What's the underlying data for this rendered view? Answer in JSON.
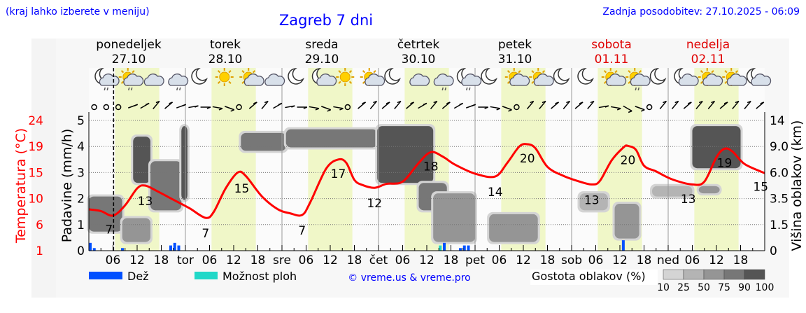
{
  "header": {
    "hint": "(kraj lahko izberete v meniju)",
    "title": "Zagreb 7 dni",
    "updated": "Zadnja posodobitev: 27.10.2025 - 06:09"
  },
  "colors": {
    "title": "#0000ff",
    "weekend": "#e00000",
    "temperature": "#ff0000",
    "rain": "#0050ff",
    "shower": "#20d8c8",
    "daylight": "#f0f7c8",
    "density": [
      "#d4d4d4",
      "#b4b4b4",
      "#959595",
      "#777777",
      "#555555"
    ]
  },
  "days": [
    {
      "name": "ponedeljek",
      "date": "27.10",
      "weekend": false
    },
    {
      "name": "torek",
      "date": "28.10",
      "weekend": false
    },
    {
      "name": "sreda",
      "date": "29.10",
      "weekend": false
    },
    {
      "name": "četrtek",
      "date": "30.10",
      "weekend": false
    },
    {
      "name": "petek",
      "date": "31.10",
      "weekend": false
    },
    {
      "name": "sobota",
      "date": "01.11",
      "weekend": true
    },
    {
      "name": "nedelja",
      "date": "02.11",
      "weekend": true
    }
  ],
  "icons": [
    "moon-cloud-rain",
    "sun-cloud-rain",
    "cloud",
    "cloud-rain",
    "moon",
    "sun",
    "sun-cloud",
    "cloud",
    "moon",
    "moon-cloud",
    "sun",
    "sun-cloud",
    "moon",
    "cloud",
    "cloud-rain",
    "moon-cloud-rain",
    "moon",
    "sun-cloud",
    "sun-cloud",
    "moon",
    "moon",
    "sun-cloud",
    "sun-cloud-rain",
    "moon",
    "moon-cloud",
    "sun-cloud",
    "sun-cloud",
    "moon-cloud"
  ],
  "wind": [
    "calm",
    "calm",
    "calm",
    250,
    240,
    220,
    230,
    250,
    260,
    270,
    280,
    290,
    "calm",
    230,
    220,
    240,
    260,
    270,
    280,
    290,
    280,
    "calm",
    230,
    220,
    230,
    220,
    230,
    240,
    220,
    230,
    240,
    250,
    270,
    280,
    290,
    "calm",
    220,
    220,
    230,
    220,
    230,
    220,
    260,
    280,
    300,
    290,
    "calm",
    220,
    220,
    230,
    220,
    220,
    230,
    220,
    220,
    230
  ],
  "chart_data": {
    "type": "line",
    "x_unit": "hour from 27.10 00:00",
    "xlim": [
      0,
      168
    ],
    "now_hour": 6.15,
    "x_tick_labels": [
      {
        "h": 6,
        "label": "06"
      },
      {
        "h": 12,
        "label": "12"
      },
      {
        "h": 18,
        "label": "18"
      },
      {
        "h": 24,
        "label": "tor"
      },
      {
        "h": 30,
        "label": "06"
      },
      {
        "h": 36,
        "label": "12"
      },
      {
        "h": 42,
        "label": "18"
      },
      {
        "h": 48,
        "label": "sre"
      },
      {
        "h": 54,
        "label": "06"
      },
      {
        "h": 60,
        "label": "12"
      },
      {
        "h": 66,
        "label": "18"
      },
      {
        "h": 72,
        "label": "čet"
      },
      {
        "h": 78,
        "label": "06"
      },
      {
        "h": 84,
        "label": "12"
      },
      {
        "h": 90,
        "label": "18"
      },
      {
        "h": 96,
        "label": "pet"
      },
      {
        "h": 102,
        "label": "06"
      },
      {
        "h": 108,
        "label": "12"
      },
      {
        "h": 114,
        "label": "18"
      },
      {
        "h": 120,
        "label": "sob"
      },
      {
        "h": 126,
        "label": "06"
      },
      {
        "h": 132,
        "label": "12"
      },
      {
        "h": 138,
        "label": "18"
      },
      {
        "h": 144,
        "label": "ned"
      },
      {
        "h": 150,
        "label": "06"
      },
      {
        "h": 156,
        "label": "12"
      },
      {
        "h": 162,
        "label": "18"
      }
    ],
    "daylight": [
      [
        6.5,
        17.5
      ],
      [
        30.5,
        41.5
      ],
      [
        54.5,
        65.5
      ],
      [
        78.5,
        89.5
      ],
      [
        102.5,
        113.5
      ],
      [
        126.5,
        137.5
      ],
      [
        150.5,
        161.5
      ]
    ],
    "y_left_precip": {
      "label": "Padavine (mm/h)",
      "ticks": [
        "0",
        "1",
        "2",
        "3",
        "4",
        "5"
      ],
      "ylim": [
        0,
        5
      ]
    },
    "y_left_temp": {
      "label": "Temperatura (°C)",
      "ticks": [
        "1",
        "6",
        "10",
        "15",
        "19",
        "24"
      ],
      "ylim": [
        1,
        24
      ]
    },
    "y_right_cloud": {
      "label": "Višina oblakov (km)",
      "ticks": [
        "0",
        "1.5",
        "3.5",
        "6.0",
        "9.0",
        "14"
      ]
    },
    "temperature": [
      [
        0,
        8.3
      ],
      [
        3,
        8.0
      ],
      [
        6,
        7.2
      ],
      [
        9,
        9
      ],
      [
        12,
        12
      ],
      [
        14,
        12.5
      ],
      [
        17,
        11.5
      ],
      [
        21,
        10
      ],
      [
        25,
        8.5
      ],
      [
        29,
        6.8
      ],
      [
        31,
        7.8
      ],
      [
        34,
        12
      ],
      [
        37,
        14.8
      ],
      [
        39,
        14.2
      ],
      [
        43,
        10.6
      ],
      [
        47,
        8.3
      ],
      [
        50,
        7.6
      ],
      [
        53,
        7.3
      ],
      [
        55,
        9.5
      ],
      [
        59,
        15.5
      ],
      [
        62,
        17.1
      ],
      [
        64,
        16.5
      ],
      [
        66,
        13.5
      ],
      [
        68,
        12.6
      ],
      [
        71,
        12.1
      ],
      [
        74,
        12.8
      ],
      [
        78,
        13.2
      ],
      [
        82,
        16.5
      ],
      [
        85,
        18.4
      ],
      [
        88,
        17.6
      ],
      [
        91,
        16.2
      ],
      [
        96,
        14.6
      ],
      [
        101,
        14.1
      ],
      [
        104,
        16.5
      ],
      [
        107,
        19.4
      ],
      [
        109,
        19.8
      ],
      [
        111,
        19.1
      ],
      [
        114,
        15.8
      ],
      [
        118,
        14.2
      ],
      [
        122,
        13.2
      ],
      [
        125,
        12.7
      ],
      [
        127,
        13.3
      ],
      [
        130,
        17
      ],
      [
        133,
        19.3
      ],
      [
        134,
        19.5
      ],
      [
        136,
        18.8
      ],
      [
        138,
        16
      ],
      [
        141,
        15
      ],
      [
        145,
        13.6
      ],
      [
        150,
        12.7
      ],
      [
        153,
        13.2
      ],
      [
        156,
        17.5
      ],
      [
        158,
        19
      ],
      [
        160,
        18.5
      ],
      [
        163,
        16.3
      ],
      [
        168,
        14.7
      ]
    ],
    "temperature_labels": [
      {
        "h": 5,
        "value": "7"
      },
      {
        "h": 14,
        "value": "13"
      },
      {
        "h": 29,
        "value": "7"
      },
      {
        "h": 38,
        "value": "15"
      },
      {
        "h": 53,
        "value": "7"
      },
      {
        "h": 62,
        "value": "17"
      },
      {
        "h": 71,
        "value": "12"
      },
      {
        "h": 85,
        "value": "18"
      },
      {
        "h": 101,
        "value": "14"
      },
      {
        "h": 109,
        "value": "20"
      },
      {
        "h": 125,
        "value": "13"
      },
      {
        "h": 134,
        "value": "20"
      },
      {
        "h": 149,
        "value": "13"
      },
      {
        "h": 158,
        "value": "19"
      },
      {
        "h": 167,
        "value": "15"
      }
    ],
    "rain": [
      [
        0,
        0.3
      ],
      [
        1,
        0.1
      ],
      [
        8,
        0.1
      ],
      [
        20,
        0.2
      ],
      [
        21,
        0.3
      ],
      [
        22,
        0.2
      ],
      [
        88,
        0.3
      ],
      [
        92,
        0.1
      ],
      [
        93,
        0.2
      ],
      [
        94,
        0.2
      ],
      [
        132.5,
        0.4
      ]
    ],
    "shower": [
      [
        87,
        0.2
      ]
    ],
    "cloud_blobs": [
      {
        "h": [
          0,
          8.3
        ],
        "km": [
          1.1,
          3.7
        ],
        "density": 75
      },
      {
        "h": [
          8.3,
          15.3
        ],
        "km": [
          0.5,
          2.0
        ],
        "density": 50
      },
      {
        "h": [
          11,
          15.3
        ],
        "km": [
          5.0,
          10.9
        ],
        "density": 90
      },
      {
        "h": [
          15.3,
          23
        ],
        "km": [
          2.6,
          7.3
        ],
        "density": 75
      },
      {
        "h": [
          23,
          24.5
        ],
        "km": [
          3.4,
          12.9
        ],
        "density": 90
      },
      {
        "h": [
          37.8,
          49
        ],
        "km": [
          8.5,
          11.6
        ],
        "density": 75
      },
      {
        "h": [
          49,
          71.7
        ],
        "km": [
          8.9,
          12.3
        ],
        "density": 75
      },
      {
        "h": [
          71.7,
          85.6
        ],
        "km": [
          5.0,
          12.9
        ],
        "density": 90
      },
      {
        "h": [
          82,
          89
        ],
        "km": [
          2.6,
          5.0
        ],
        "density": 75
      },
      {
        "h": [
          85.6,
          96
        ],
        "km": [
          0.5,
          4.0
        ],
        "density": 50
      },
      {
        "h": [
          99.5,
          111.6
        ],
        "km": [
          0.5,
          2.3
        ],
        "density": 50
      },
      {
        "h": [
          122,
          129
        ],
        "km": [
          2.6,
          4.0
        ],
        "density": 25
      },
      {
        "h": [
          130.7,
          136.8
        ],
        "km": [
          0.7,
          3.1
        ],
        "density": 50
      },
      {
        "h": [
          140,
          150
        ],
        "km": [
          3.7,
          4.7
        ],
        "density": 25
      },
      {
        "h": [
          150,
          162
        ],
        "km": [
          6.5,
          12.9
        ],
        "density": 90
      },
      {
        "h": [
          151.6,
          156.8
        ],
        "km": [
          4.0,
          4.7
        ],
        "density": 50
      }
    ]
  },
  "legend": {
    "rain": "Dež",
    "shower": "Možnost ploh",
    "copyright": "© vreme.us & vreme.pro",
    "density_title": "Gostota oblakov (%)",
    "density_ticks": [
      "10",
      "25",
      "50",
      "75",
      "90",
      "100"
    ]
  }
}
